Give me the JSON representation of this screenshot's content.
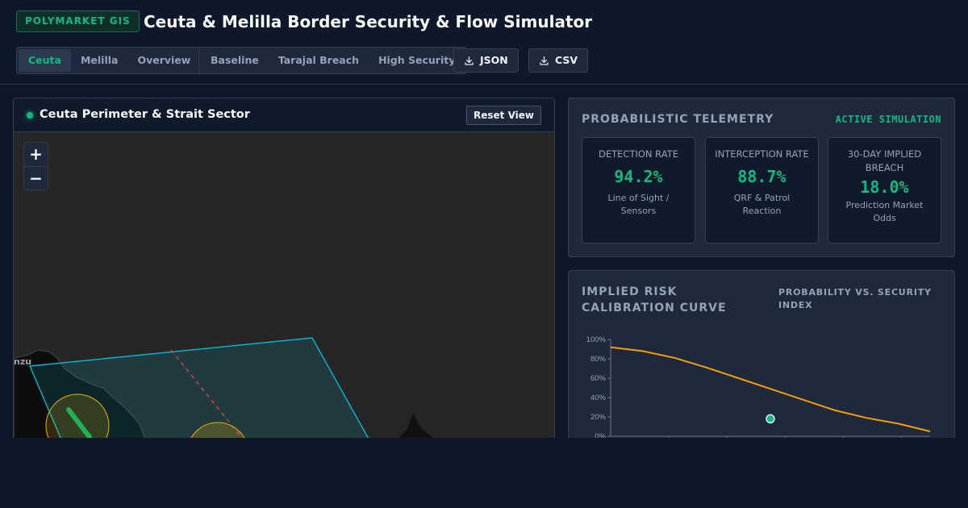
{
  "header": {
    "brand": "POLYMARKET GIS",
    "title": "Ceuta & Melilla Border Security & Flow Simulator"
  },
  "region_tabs": [
    {
      "label": "Ceuta",
      "active": true
    },
    {
      "label": "Melilla",
      "active": false
    },
    {
      "label": "Overview",
      "active": false
    }
  ],
  "scenario_tabs": [
    {
      "label": "Baseline"
    },
    {
      "label": "Tarajal Breach"
    },
    {
      "label": "High Security"
    }
  ],
  "downloads": {
    "json_label": "JSON",
    "csv_label": "CSV",
    "icon": "download-icon"
  },
  "map": {
    "title": "Ceuta Perimeter & Strait Sector",
    "reset_label": "Reset View",
    "zoom_in": "+",
    "zoom_out": "−",
    "place_label": "nzu",
    "colors": {
      "perimeter": "#06b6d4",
      "sensor_zone": "#eab308",
      "patrol_route": "#22c55e",
      "breach_line": "#ef4444"
    }
  },
  "telemetry": {
    "title": "PROBABILISTIC TELEMETRY",
    "status": "ACTIVE SIMULATION",
    "metrics": [
      {
        "label": "DETECTION RATE",
        "value": "94.2%",
        "sub": "Line of Sight / Sensors"
      },
      {
        "label": "INTERCEPTION RATE",
        "value": "88.7%",
        "sub": "QRF & Patrol Reaction"
      },
      {
        "label": "30-DAY IMPLIED BREACH",
        "value": "18.0%",
        "sub": "Prediction Market Odds"
      }
    ]
  },
  "curve": {
    "title": "IMPLIED RISK CALIBRATION CURVE",
    "subtitle": "PROBABILITY VS. SECURITY INDEX"
  },
  "chart_data": {
    "type": "line",
    "title": "IMPLIED RISK CALIBRATION CURVE",
    "subtitle": "PROBABILITY VS. SECURITY INDEX",
    "y_ticks": [
      "100%",
      "80%",
      "60%",
      "40%",
      "20%",
      "0%"
    ],
    "ylim": [
      0,
      100
    ],
    "xlim": [
      0,
      1
    ],
    "series": [
      {
        "color": "#f59e0b",
        "x": [
          0.0,
          0.1,
          0.2,
          0.3,
          0.4,
          0.5,
          0.6,
          0.7,
          0.8,
          0.9,
          1.0
        ],
        "y": [
          92,
          88,
          81,
          71,
          60,
          49,
          38,
          27,
          19,
          13,
          5
        ]
      }
    ],
    "marker": {
      "x": 0.5,
      "y": 18,
      "color": "#10b981"
    },
    "grid": false
  }
}
